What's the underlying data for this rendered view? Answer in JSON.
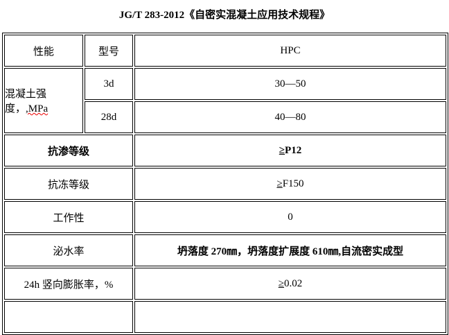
{
  "title": "JG/T 283-2012《自密实混凝土应用技术规程》",
  "header": {
    "property": "性能",
    "model": "型号",
    "value": "HPC"
  },
  "strength": {
    "label_text": "混凝土强度，",
    "label_unit": ",MPa",
    "rows": [
      {
        "age": "3d",
        "value": "30—50"
      },
      {
        "age": "28d",
        "value": "40—80"
      }
    ]
  },
  "rows": [
    {
      "label": "抗渗等级",
      "symbol": "≥",
      "value": "P12",
      "bold": true
    },
    {
      "label": "抗冻等级",
      "symbol": "≥",
      "value": "F150"
    },
    {
      "label": "工作性",
      "symbol": "",
      "value": "0"
    },
    {
      "label": "泌水率",
      "symbol": "",
      "value": "坍落度 270㎜，坍落度扩展度 610㎜,自流密实成型",
      "bold_value": true
    },
    {
      "label": "24h 竖向膨胀率，%",
      "symbol": "≥",
      "value": "0.02"
    },
    {
      "label": "",
      "symbol": "",
      "value": ""
    }
  ]
}
